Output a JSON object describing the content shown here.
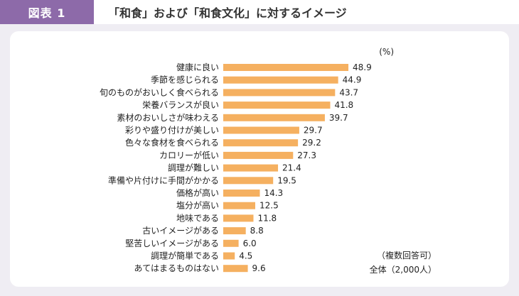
{
  "header": {
    "badge": "図表 1",
    "title": "「和食」および「和食文化」に対するイメージ"
  },
  "colors": {
    "bar": "#f5b060",
    "badge": "#8d6aa9",
    "background": "#efedf3"
  },
  "chart_data": {
    "type": "bar",
    "orientation": "horizontal",
    "title": "「和食」および「和食文化」に対するイメージ",
    "unit": "(%)",
    "notes": [
      "（複数回答可）",
      "全体（2,000人）"
    ],
    "categories": [
      "健康に良い",
      "季節を感じられる",
      "旬のものがおいしく食べられる",
      "栄養バランスが良い",
      "素材のおいしさが味わえる",
      "彩りや盛り付けが美しい",
      "色々な食材を食べられる",
      "カロリーが低い",
      "調理が難しい",
      "準備や片付けに手間がかかる",
      "価格が高い",
      "塩分が高い",
      "地味である",
      "古いイメージがある",
      "堅苦しいイメージがある",
      "調理が簡単である",
      "あてはまるものはない"
    ],
    "values": [
      48.9,
      44.9,
      43.7,
      41.8,
      39.7,
      29.7,
      29.2,
      27.3,
      21.4,
      19.5,
      14.3,
      12.5,
      11.8,
      8.8,
      6.0,
      4.5,
      9.6
    ],
    "value_labels": [
      "48.9",
      "44.9",
      "43.7",
      "41.8",
      "39.7",
      "29.7",
      "29.2",
      "27.3",
      "21.4",
      "19.5",
      "14.3",
      "12.5",
      "11.8",
      "8.8",
      "6.0",
      "4.5",
      "9.6"
    ],
    "xlim": [
      0,
      50
    ],
    "grid": false,
    "legend": "none"
  }
}
